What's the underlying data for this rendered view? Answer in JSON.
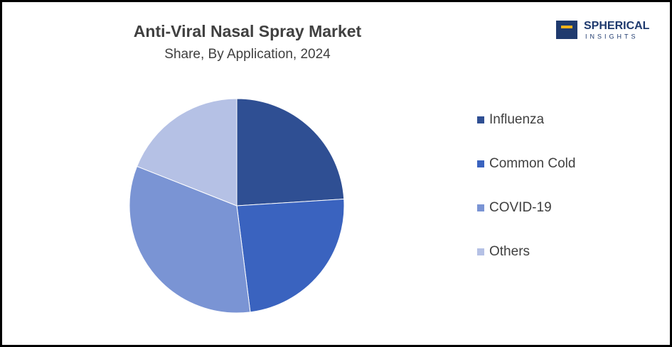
{
  "logo": {
    "name": "SPHERICAL",
    "tagline": "INSIGHTS"
  },
  "chart_data": {
    "type": "pie",
    "title": "Anti-Viral Nasal Spray Market",
    "subtitle": "Share, By Application, 2024",
    "categories": [
      "Influenza",
      "Common Cold",
      "COVID-19",
      "Others"
    ],
    "values": [
      24,
      24,
      33,
      19
    ],
    "colors": [
      "#2f4f93",
      "#3a63bf",
      "#7a94d4",
      "#b5c1e5"
    ],
    "legend": "right"
  }
}
